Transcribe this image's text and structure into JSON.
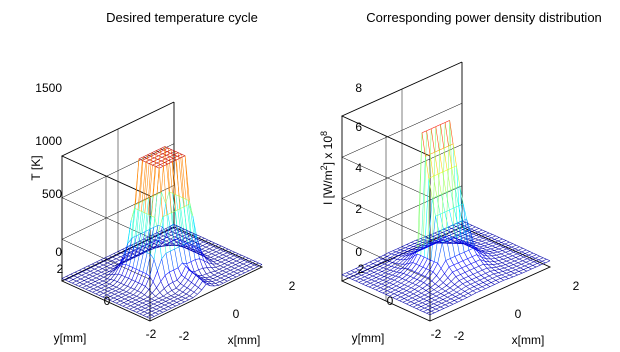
{
  "chart_data": [
    {
      "type": "surface",
      "title": "Desired temperature cycle",
      "xlabel": "x[mm]",
      "ylabel": "y[mm]",
      "zlabel": "T [K]",
      "xlim": [
        -2,
        2
      ],
      "ylim": [
        -2,
        2
      ],
      "zlim": [
        0,
        1500
      ],
      "xticks": [
        "-2",
        "0",
        "2"
      ],
      "yticks": [
        "-2",
        "0",
        "2"
      ],
      "zticks": [
        "0",
        "500",
        "1000",
        "1500"
      ],
      "grid": true,
      "colormap": "jet",
      "surface": {
        "description_values": {
          "plateau_height": 1400,
          "plateau_x_range": [
            -0.5,
            0.5
          ],
          "plateau_y_range": [
            -0.5,
            0.5
          ],
          "base_level": 30,
          "trail_direction": "-y"
        }
      }
    },
    {
      "type": "surface",
      "title": "Corresponding power density distribution",
      "xlabel": "x[mm]",
      "ylabel": "y[mm]",
      "zlabel_main": "I [W/m",
      "zlabel_sup": "2",
      "zlabel_tail": "] x 10",
      "zlabel_exp": "8",
      "xlim": [
        -2,
        2
      ],
      "ylim": [
        -2,
        2
      ],
      "zlim": [
        0,
        8
      ],
      "xticks": [
        "-2",
        "0",
        "2"
      ],
      "yticks": [
        "-2",
        "0",
        "2"
      ],
      "zticks": [
        "0",
        "2",
        "4",
        "6",
        "8"
      ],
      "grid": true,
      "colormap": "jet",
      "surface": {
        "description_values": {
          "peak_value": 7.2,
          "peak_x_range": [
            -0.5,
            0.5
          ],
          "peak_y_range": [
            -0.5,
            0.5
          ],
          "base_level": 0.3
        }
      }
    }
  ]
}
